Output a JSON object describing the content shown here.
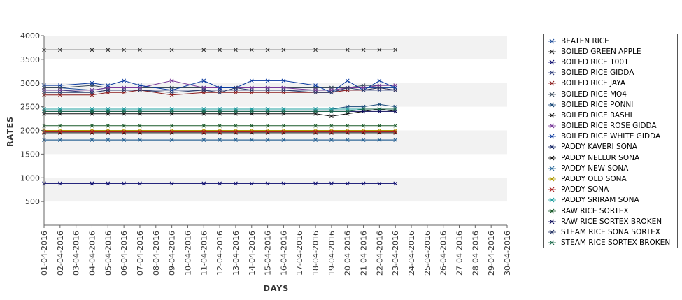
{
  "chart_data": {
    "type": "line",
    "title": "",
    "xlabel": "DAYS",
    "ylabel": "RATES",
    "ylim": [
      0,
      4000
    ],
    "yticks": [
      500,
      1000,
      1500,
      2000,
      2500,
      3000,
      3500,
      4000
    ],
    "grid": false,
    "banded_background": true,
    "legend_position": "right",
    "categories": [
      "01-04-2016",
      "02-04-2016",
      "03-04-2016",
      "04-04-2016",
      "05-04-2016",
      "06-04-2016",
      "07-04-2016",
      "08-04-2016",
      "09-04-2016",
      "10-04-2016",
      "11-04-2016",
      "12-04-2016",
      "13-04-2016",
      "14-04-2016",
      "15-04-2016",
      "16-04-2016",
      "17-04-2016",
      "18-04-2016",
      "19-04-2016",
      "20-04-2016",
      "21-04-2016",
      "22-04-2016",
      "23-04-2016",
      "24-04-2016",
      "25-04-2016",
      "26-04-2016",
      "27-04-2016",
      "28-04-2016",
      "29-04-2016",
      "30-04-2016"
    ],
    "series": [
      {
        "name": "BEATEN RICE",
        "color": "#1f4e9c",
        "values": [
          2900,
          2900,
          null,
          2850,
          2900,
          2900,
          2900,
          null,
          2900,
          null,
          2900,
          2900,
          2900,
          2900,
          2900,
          2900,
          null,
          2900,
          2900,
          2900,
          2900,
          2900,
          2900,
          null,
          null,
          null,
          null,
          null,
          null,
          null
        ]
      },
      {
        "name": "BOILED GREEN APPLE",
        "color": "#222222",
        "values": [
          3700,
          3700,
          null,
          3700,
          3700,
          3700,
          3700,
          null,
          3700,
          null,
          3700,
          3700,
          3700,
          3700,
          3700,
          3700,
          null,
          3700,
          null,
          3700,
          3700,
          3700,
          3700,
          null,
          null,
          null,
          null,
          null,
          null,
          null
        ]
      },
      {
        "name": "BOILED RICE 1001",
        "color": "#0a0a6e",
        "values": [
          880,
          880,
          null,
          880,
          880,
          880,
          880,
          null,
          880,
          null,
          880,
          880,
          880,
          880,
          880,
          880,
          null,
          880,
          880,
          880,
          880,
          880,
          880,
          null,
          null,
          null,
          null,
          null,
          null,
          null
        ]
      },
      {
        "name": "BOILED RICE GIDDA",
        "color": "#2a3a7a",
        "values": [
          2850,
          2850,
          null,
          2800,
          2850,
          2850,
          2850,
          null,
          2850,
          null,
          2850,
          2850,
          2850,
          2850,
          2850,
          2850,
          null,
          2850,
          2850,
          2850,
          2850,
          2850,
          2850,
          null,
          null,
          null,
          null,
          null,
          null,
          null
        ]
      },
      {
        "name": "BOILED RICE JAYA",
        "color": "#8b1a1a",
        "values": [
          2750,
          2750,
          null,
          2750,
          2800,
          2800,
          2850,
          null,
          2750,
          null,
          2800,
          2800,
          2800,
          2800,
          2800,
          2800,
          null,
          2800,
          2800,
          2850,
          2850,
          2900,
          2850,
          null,
          null,
          null,
          null,
          null,
          null,
          null
        ]
      },
      {
        "name": "BOILED RICE MO4",
        "color": "#3a4a5a",
        "values": [
          2900,
          2900,
          null,
          2950,
          2900,
          2900,
          2900,
          null,
          2900,
          null,
          2900,
          2900,
          2900,
          2900,
          2900,
          2900,
          null,
          2900,
          2900,
          2900,
          2950,
          2950,
          2950,
          null,
          null,
          null,
          null,
          null,
          null,
          null
        ]
      },
      {
        "name": "BOILED RICE PONNI",
        "color": "#1a4a7a",
        "values": [
          2450,
          2450,
          null,
          2450,
          2450,
          2450,
          2450,
          null,
          2450,
          null,
          2450,
          2450,
          2450,
          2450,
          2450,
          2450,
          null,
          2450,
          2450,
          2500,
          2500,
          2550,
          2500,
          null,
          null,
          null,
          null,
          null,
          null,
          null
        ]
      },
      {
        "name": "BOILED RICE RASHI",
        "color": "#111111",
        "values": [
          2350,
          2350,
          null,
          2350,
          2350,
          2350,
          2350,
          null,
          2350,
          null,
          2350,
          2350,
          2350,
          2350,
          2350,
          2350,
          null,
          2350,
          2300,
          2350,
          2400,
          2450,
          2400,
          null,
          null,
          null,
          null,
          null,
          null,
          null
        ]
      },
      {
        "name": "BOILED RICE ROSE GIDDA",
        "color": "#7a3a9a",
        "values": [
          2850,
          2850,
          null,
          2850,
          2900,
          2900,
          2900,
          null,
          3050,
          null,
          2900,
          2900,
          2900,
          2900,
          2900,
          2900,
          null,
          2850,
          2850,
          2900,
          2900,
          2950,
          2950,
          null,
          null,
          null,
          null,
          null,
          null,
          null
        ]
      },
      {
        "name": "BOILED RICE WHITE GIDDA",
        "color": "#0a3aa0",
        "values": [
          2950,
          2950,
          null,
          3000,
          2950,
          3050,
          2950,
          null,
          2850,
          null,
          3050,
          2900,
          2900,
          3050,
          3050,
          3050,
          null,
          2950,
          2800,
          3050,
          2850,
          3050,
          2900,
          null,
          null,
          null,
          null,
          null,
          null,
          null
        ]
      },
      {
        "name": "PADDY KAVERI SONA",
        "color": "#1a2a6a",
        "values": [
          1800,
          1800,
          null,
          1800,
          1800,
          1800,
          1800,
          null,
          1800,
          null,
          1800,
          1800,
          1800,
          1800,
          1800,
          1800,
          null,
          1800,
          1800,
          1800,
          1800,
          1800,
          1800,
          null,
          null,
          null,
          null,
          null,
          null,
          null
        ]
      },
      {
        "name": "PADDY NELLUR SONA",
        "color": "#111111",
        "values": [
          1950,
          1950,
          null,
          1950,
          1950,
          1950,
          1950,
          null,
          1950,
          null,
          1950,
          1950,
          1950,
          1950,
          1950,
          1950,
          null,
          1950,
          1950,
          1950,
          1950,
          1950,
          1950,
          null,
          null,
          null,
          null,
          null,
          null,
          null
        ]
      },
      {
        "name": "PADDY NEW SONA",
        "color": "#2a6a9a",
        "values": [
          1800,
          1800,
          null,
          1800,
          1800,
          1800,
          1800,
          null,
          1800,
          null,
          1800,
          1800,
          1800,
          1800,
          1800,
          1800,
          null,
          1800,
          1800,
          1800,
          1800,
          1800,
          1800,
          null,
          null,
          null,
          null,
          null,
          null,
          null
        ]
      },
      {
        "name": "PADDY OLD SONA",
        "color": "#b09a00",
        "values": [
          2000,
          2000,
          null,
          2000,
          2000,
          2000,
          2000,
          null,
          2000,
          null,
          2000,
          2000,
          2000,
          2000,
          2000,
          2000,
          null,
          2000,
          2000,
          2000,
          2000,
          2000,
          2000,
          null,
          null,
          null,
          null,
          null,
          null,
          null
        ]
      },
      {
        "name": "PADDY SONA",
        "color": "#aa2020",
        "values": [
          1970,
          1970,
          null,
          1970,
          1970,
          1970,
          1970,
          null,
          1970,
          null,
          1970,
          1970,
          1970,
          1970,
          1970,
          1970,
          null,
          1970,
          1970,
          1970,
          1970,
          1970,
          1970,
          null,
          null,
          null,
          null,
          null,
          null,
          null
        ]
      },
      {
        "name": "PADDY SRIRAM SONA",
        "color": "#20a0a0",
        "values": [
          2450,
          2450,
          null,
          2450,
          2450,
          2450,
          2450,
          null,
          2450,
          null,
          2450,
          2450,
          2450,
          2450,
          2450,
          2450,
          null,
          2450,
          2450,
          2450,
          2450,
          2450,
          2450,
          null,
          null,
          null,
          null,
          null,
          null,
          null
        ]
      },
      {
        "name": "RAW RICE SORTEX",
        "color": "#1a5a2a",
        "values": [
          2100,
          2100,
          null,
          2100,
          2100,
          2100,
          2100,
          null,
          2100,
          null,
          2100,
          2100,
          2100,
          2100,
          2100,
          2100,
          null,
          2100,
          2100,
          2100,
          2100,
          2100,
          2100,
          null,
          null,
          null,
          null,
          null,
          null,
          null
        ]
      },
      {
        "name": "RAW RICE SORTEX BROKEN",
        "color": "#0a0a5a",
        "values": [
          2400,
          2400,
          null,
          2400,
          2400,
          2400,
          2400,
          null,
          2400,
          null,
          2400,
          2400,
          2400,
          2400,
          2400,
          2400,
          null,
          2400,
          2400,
          2400,
          2400,
          2400,
          2400,
          null,
          null,
          null,
          null,
          null,
          null,
          null
        ]
      },
      {
        "name": "STEAM RICE SONA SORTEX",
        "color": "#2a3a6a",
        "values": [
          2800,
          2800,
          null,
          2800,
          2850,
          2850,
          2850,
          null,
          2800,
          null,
          2850,
          2800,
          2900,
          2850,
          2850,
          2850,
          null,
          2800,
          2800,
          2900,
          2850,
          2900,
          2850,
          null,
          null,
          null,
          null,
          null,
          null,
          null
        ]
      },
      {
        "name": "STEAM RICE SORTEX BROKEN",
        "color": "#1a6a4a",
        "values": [
          2400,
          2400,
          null,
          2400,
          2400,
          2400,
          2400,
          null,
          2400,
          null,
          2400,
          2400,
          2400,
          2400,
          2400,
          2400,
          null,
          2400,
          2400,
          2400,
          2450,
          2450,
          2450,
          null,
          null,
          null,
          null,
          null,
          null,
          null
        ]
      }
    ]
  }
}
